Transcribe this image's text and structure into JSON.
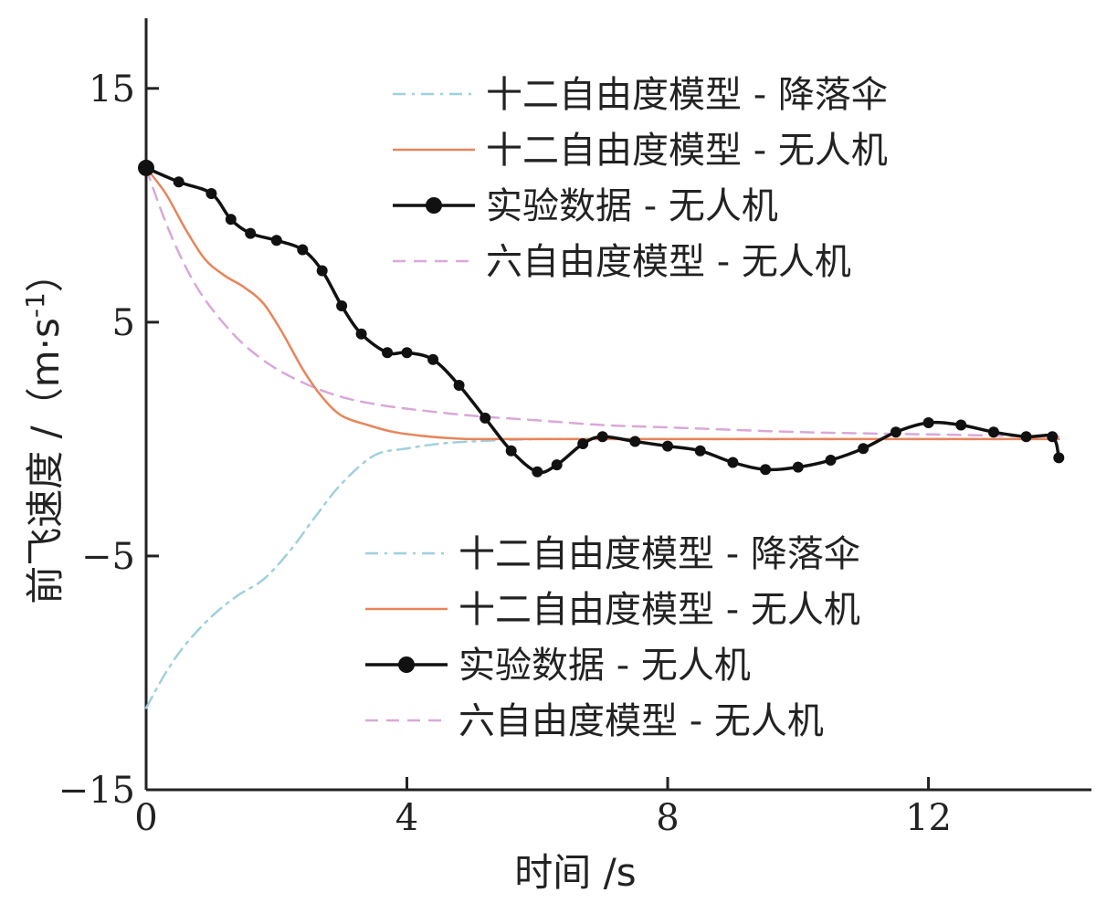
{
  "chart_data": {
    "type": "line",
    "title": "",
    "xlabel": "时间 /s",
    "ylabel": "前飞速度 /（m·s",
    "ylabel_sup": "-1",
    "ylabel_close": "）",
    "xlim": [
      0,
      14.5
    ],
    "ylim": [
      -15,
      18
    ],
    "xticks": [
      0,
      4,
      8,
      12
    ],
    "yticks": [
      -15,
      -5,
      5,
      15
    ],
    "xtick_labels": [
      "0",
      "4",
      "8",
      "12"
    ],
    "ytick_labels": [
      "−15",
      "−5",
      "5",
      "15"
    ],
    "grid": false,
    "legends": [
      {
        "placement": "upper-right",
        "entries": [
          "十二自由度模型 - 降落伞",
          "十二自由度模型 - 无人机",
          "实验数据 - 无人机",
          "六自由度模型 - 无人机"
        ]
      },
      {
        "placement": "lower-middle",
        "entries": [
          "十二自由度模型 - 降落伞",
          "十二自由度模型 - 无人机",
          "实验数据 - 无人机",
          "六自由度模型 - 无人机"
        ]
      }
    ],
    "series": [
      {
        "name": "十二自由度模型 - 降落伞",
        "color": "#9fd0de",
        "style": "dashdot",
        "x": [
          0,
          0.3,
          0.6,
          1.0,
          1.4,
          1.8,
          2.2,
          2.6,
          3.0,
          3.5,
          4.0,
          4.5,
          5.0,
          6.0,
          7.0,
          8.0,
          10.0,
          12.0,
          14.0
        ],
        "y": [
          -11.5,
          -10.0,
          -8.8,
          -7.6,
          -6.7,
          -6.0,
          -4.8,
          -3.3,
          -1.9,
          -0.7,
          -0.4,
          -0.2,
          -0.1,
          0.0,
          0.0,
          0.0,
          0.0,
          0.0,
          0.0
        ]
      },
      {
        "name": "十二自由度模型 - 无人机",
        "color": "#e8845a",
        "style": "solid",
        "x": [
          0,
          0.3,
          0.6,
          0.9,
          1.2,
          1.5,
          1.8,
          2.1,
          2.4,
          2.7,
          3.0,
          3.4,
          3.8,
          4.2,
          4.6,
          5.0,
          6.0,
          8.0,
          10.0,
          12.0,
          14.0
        ],
        "y": [
          11.6,
          10.5,
          9.0,
          7.7,
          7.0,
          6.5,
          5.8,
          4.5,
          3.0,
          1.8,
          1.0,
          0.6,
          0.3,
          0.15,
          0.05,
          0.0,
          0.0,
          0.0,
          0.0,
          0.0,
          0.0
        ]
      },
      {
        "name": "实验数据 - 无人机",
        "color": "#111111",
        "style": "solid-marker",
        "x": [
          0,
          0.5,
          1.0,
          1.3,
          1.6,
          2.0,
          2.4,
          2.7,
          3.0,
          3.3,
          3.7,
          4.0,
          4.4,
          4.8,
          5.2,
          5.6,
          6.0,
          6.3,
          6.7,
          7.0,
          7.5,
          8.0,
          8.5,
          9.0,
          9.5,
          10.0,
          10.5,
          11.0,
          11.5,
          12.0,
          12.5,
          13.0,
          13.5,
          13.9,
          14.0
        ],
        "y": [
          11.6,
          11.0,
          10.5,
          9.4,
          8.8,
          8.5,
          8.1,
          7.2,
          5.7,
          4.5,
          3.7,
          3.7,
          3.4,
          2.3,
          0.9,
          -0.5,
          -1.4,
          -1.1,
          -0.2,
          0.1,
          -0.1,
          -0.3,
          -0.5,
          -1.0,
          -1.3,
          -1.2,
          -0.9,
          -0.4,
          0.3,
          0.7,
          0.6,
          0.3,
          0.1,
          0.1,
          -0.8
        ]
      },
      {
        "name": "六自由度模型 - 无人机",
        "color": "#d9a8d8",
        "style": "dashed",
        "x": [
          0,
          0.2,
          0.4,
          0.6,
          0.8,
          1.0,
          1.3,
          1.6,
          2.0,
          2.5,
          3.0,
          3.5,
          4.0,
          5.0,
          6.0,
          7.0,
          8.0,
          10.0,
          12.0,
          14.0
        ],
        "y": [
          11.6,
          10.0,
          8.6,
          7.4,
          6.4,
          5.6,
          4.6,
          3.8,
          3.0,
          2.3,
          1.8,
          1.5,
          1.3,
          1.0,
          0.8,
          0.6,
          0.5,
          0.3,
          0.2,
          0.1
        ]
      }
    ]
  }
}
